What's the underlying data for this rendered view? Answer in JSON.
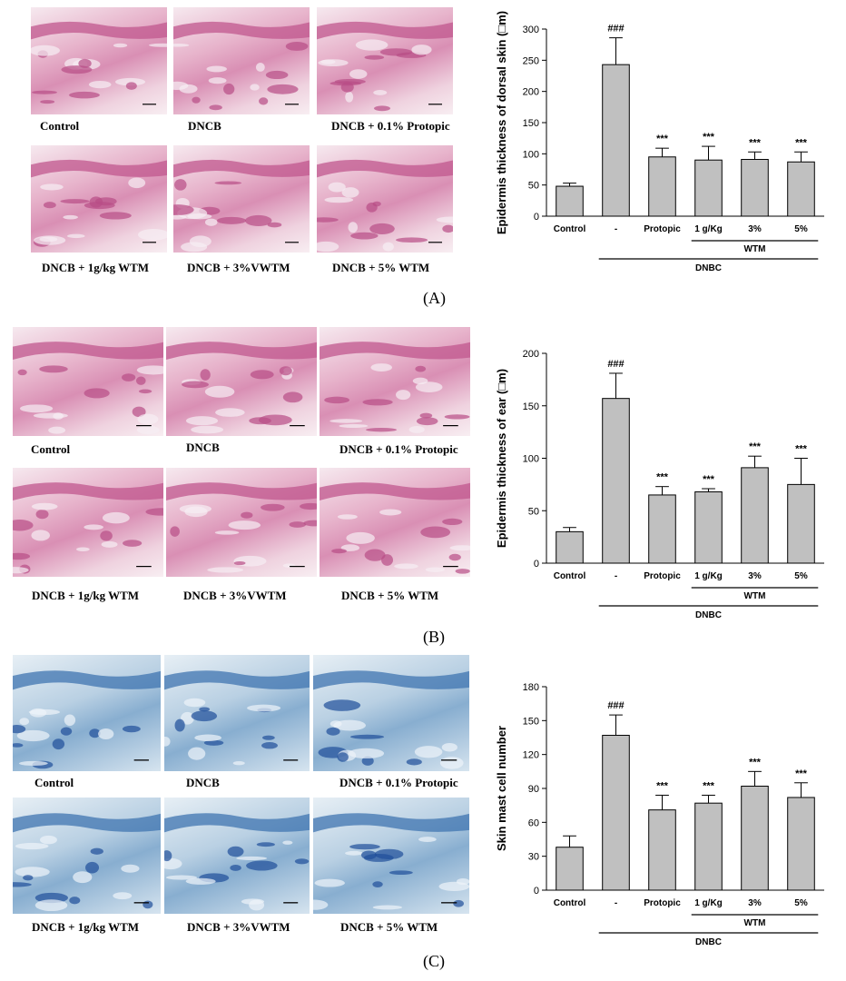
{
  "panels": [
    {
      "letter": "(A)",
      "captions": [
        "Control",
        "DNCB",
        "DNCB + 0.1% Protopic",
        "DNCB + 1g/kg WTM",
        "DNCB + 3%VWTM",
        "DNCB + 5% WTM"
      ],
      "stain": "he"
    },
    {
      "letter": "(B)",
      "captions": [
        "Control",
        "DNCB",
        "DNCB + 0.1% Protopic",
        "DNCB + 1g/kg WTM",
        "DNCB + 3%VWTM",
        "DNCB + 5% WTM"
      ],
      "stain": "he"
    },
    {
      "letter": "(C)",
      "captions": [
        "Control",
        "DNCB",
        "DNCB + 0.1% Protopic",
        "DNCB + 1g/kg WTM",
        "DNCB + 3%VWTM",
        "DNCB + 5% WTM"
      ],
      "stain": "toluidine"
    }
  ],
  "chart_data": [
    {
      "type": "bar",
      "ylabel": "Epidermis thickness of dorsal skin (□m)",
      "categories": [
        "Control",
        "-",
        "Protopic",
        "1 g/Kg",
        "3%",
        "5%"
      ],
      "values": [
        48,
        243,
        95,
        90,
        91,
        87
      ],
      "errors": [
        5,
        43,
        14,
        22,
        12,
        16
      ],
      "annotations": [
        "",
        "###",
        "***",
        "***",
        "***",
        "***"
      ],
      "ylim": [
        0,
        300
      ],
      "yticks": [
        0,
        50,
        100,
        150,
        200,
        250,
        300
      ],
      "group_labels": {
        "wtm": "WTM",
        "dnbc": "DNBC"
      },
      "bar_color": "#c0c0c0"
    },
    {
      "type": "bar",
      "ylabel": "Epidermis thickness of ear (□m)",
      "categories": [
        "Control",
        "-",
        "Protopic",
        "1 g/Kg",
        "3%",
        "5%"
      ],
      "values": [
        30,
        157,
        65,
        68,
        91,
        75
      ],
      "errors": [
        4,
        24,
        8,
        3,
        11,
        25
      ],
      "annotations": [
        "",
        "###",
        "***",
        "***",
        "***",
        "***"
      ],
      "ylim": [
        0,
        200
      ],
      "yticks": [
        0,
        50,
        100,
        150,
        200
      ],
      "group_labels": {
        "wtm": "WTM",
        "dnbc": "DNBC"
      },
      "bar_color": "#c0c0c0"
    },
    {
      "type": "bar",
      "ylabel": "Skin mast cell number",
      "categories": [
        "Control",
        "-",
        "Protopic",
        "1 g/Kg",
        "3%",
        "5%"
      ],
      "values": [
        38,
        137,
        71,
        77,
        92,
        82
      ],
      "errors": [
        10,
        18,
        13,
        7,
        13,
        13
      ],
      "annotations": [
        "",
        "###",
        "***",
        "***",
        "***",
        "***"
      ],
      "ylim": [
        0,
        180
      ],
      "yticks": [
        0,
        30,
        60,
        90,
        120,
        150,
        180
      ],
      "group_labels": {
        "wtm": "WTM",
        "dnbc": "DNBC"
      },
      "bar_color": "#c0c0c0"
    }
  ]
}
